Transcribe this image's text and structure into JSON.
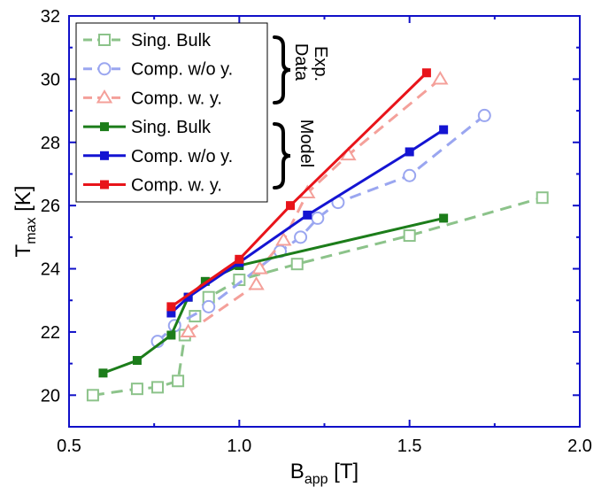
{
  "chart_data": {
    "type": "line",
    "xlabel": {
      "main": "B",
      "sub": "app",
      "unit": "[T]"
    },
    "ylabel": {
      "main": "T",
      "sub": "max",
      "unit": "[K]"
    },
    "xlim": [
      0.5,
      2.0
    ],
    "ylim": [
      19,
      32
    ],
    "x_ticks": [
      "0.5",
      "1.0",
      "1.5",
      "2.0"
    ],
    "y_ticks": [
      "20",
      "22",
      "24",
      "26",
      "28",
      "30",
      "32"
    ],
    "grid": false,
    "legend_position": "top-left",
    "series": [
      {
        "name": "Sing. Bulk",
        "group": "exp",
        "color": "#8cc38a",
        "dash": true,
        "marker": "square-open",
        "x": [
          0.57,
          0.7,
          0.76,
          0.82,
          0.84,
          0.87,
          0.91,
          1.0,
          1.17,
          1.5,
          1.89
        ],
        "y": [
          20.0,
          20.2,
          20.25,
          20.45,
          21.9,
          22.5,
          23.1,
          23.65,
          24.15,
          25.05,
          26.25
        ]
      },
      {
        "name": "Comp. w/o y.",
        "group": "exp",
        "color": "#9aa6f0",
        "dash": true,
        "marker": "circle-open",
        "x": [
          0.76,
          0.81,
          0.91,
          1.12,
          1.18,
          1.23,
          1.29,
          1.5,
          1.72
        ],
        "y": [
          21.7,
          22.2,
          22.8,
          24.55,
          25.0,
          25.6,
          26.1,
          26.95,
          28.85
        ]
      },
      {
        "name": "Comp. w. y.",
        "group": "exp",
        "color": "#f4a09a",
        "dash": true,
        "marker": "triangle-open",
        "x": [
          0.85,
          1.05,
          1.06,
          1.13,
          1.2,
          1.32,
          1.59
        ],
        "y": [
          22.0,
          23.5,
          24.0,
          24.9,
          26.4,
          27.6,
          30.0
        ]
      },
      {
        "name": "Sing. Bulk",
        "group": "model",
        "color": "#1c7d1a",
        "dash": false,
        "marker": "square-filled",
        "x": [
          0.6,
          0.7,
          0.8,
          0.85,
          0.9,
          1.0,
          1.6
        ],
        "y": [
          20.7,
          21.1,
          21.9,
          23.1,
          23.6,
          24.1,
          25.6
        ]
      },
      {
        "name": "Comp. w/o y.",
        "group": "model",
        "color": "#1414d2",
        "dash": false,
        "marker": "square-filled",
        "x": [
          0.8,
          0.85,
          1.0,
          1.2,
          1.5,
          1.6
        ],
        "y": [
          22.6,
          23.1,
          24.2,
          25.7,
          27.7,
          28.4
        ]
      },
      {
        "name": "Comp. w. y.",
        "group": "model",
        "color": "#e8141a",
        "dash": false,
        "marker": "square-filled",
        "x": [
          0.8,
          1.0,
          1.15,
          1.55
        ],
        "y": [
          22.8,
          24.3,
          26.0,
          30.2
        ]
      }
    ],
    "annotations": {
      "exp_group": "Exp. Data",
      "model_group": "Model"
    }
  }
}
